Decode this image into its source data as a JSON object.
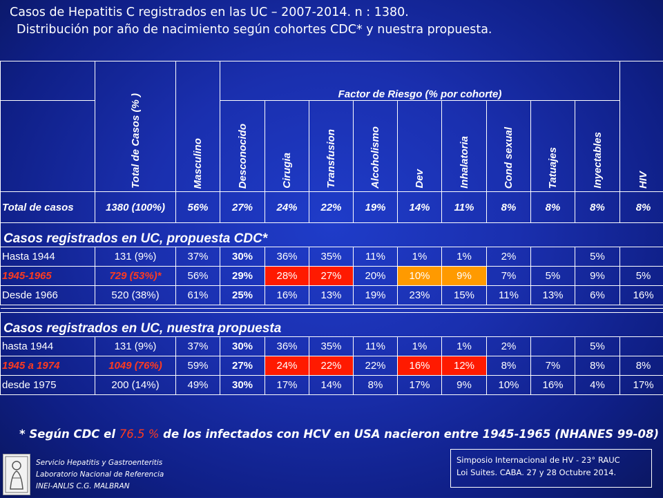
{
  "title": {
    "line1": "Casos de Hepatitis C registrados en las UC – 2007-2014. n : 1380.",
    "line2": "Distribución por año de nacimiento según cohortes CDC* y nuestra propuesta."
  },
  "table": {
    "headers": {
      "total": "Total de Casos (% )",
      "masculino": "Masculino",
      "factor_group": "Factor de Riesgo (% por cohorte)",
      "factors": [
        "Desconocido",
        "Cirugia",
        "Transfusion",
        "Alcoholismo",
        "Dev",
        "Inhalatoria",
        "Cond sexual",
        "Tatuajes",
        "Inyectables"
      ],
      "hiv": "HIV"
    },
    "total_row": [
      "Total de casos",
      "1380 (100%)",
      "56%",
      "27%",
      "24%",
      "22%",
      "19%",
      "14%",
      "11%",
      "8%",
      "8%",
      "8%",
      "8%"
    ],
    "section1_title": "Casos registrados en UC, propuesta CDC*",
    "section1_rows": [
      [
        "Hasta 1944",
        "131 (9%)",
        "37%",
        "30%",
        "36%",
        "35%",
        "11%",
        "1%",
        "1%",
        "2%",
        "",
        "5%",
        ""
      ],
      [
        "1945-1965",
        "729 (53%)*",
        "56%",
        "29%",
        "28%",
        "27%",
        "20%",
        "10%",
        "9%",
        "7%",
        "5%",
        "9%",
        "5%"
      ],
      [
        "Desde 1966",
        "520 (38%)",
        "61%",
        "25%",
        "16%",
        "13%",
        "19%",
        "23%",
        "15%",
        "11%",
        "13%",
        "6%",
        "16%"
      ]
    ],
    "section2_title": "Casos registrados en UC, nuestra propuesta",
    "section2_rows": [
      [
        "hasta 1944",
        "131 (9%)",
        "37%",
        "30%",
        "36%",
        "35%",
        "11%",
        "1%",
        "1%",
        "2%",
        "",
        "5%",
        ""
      ],
      [
        "1945  a 1974",
        "1049 (76%)",
        "59%",
        "27%",
        "24%",
        "22%",
        "22%",
        "16%",
        "12%",
        "8%",
        "7%",
        "8%",
        "8%"
      ],
      [
        "desde 1975",
        "200 (14%)",
        "49%",
        "30%",
        "17%",
        "14%",
        "8%",
        "17%",
        "9%",
        "10%",
        "16%",
        "4%",
        "17%"
      ]
    ]
  },
  "footnote": {
    "pre": "* Según  CDC  el ",
    "pct": "76.5 %",
    "post": " de los infectados con HCV en USA nacieron entre 1945-1965  (NHANES 99-08)"
  },
  "institution": [
    "Servicio Hepatitis y Gastroenteritis",
    "Laboratorio Nacional de Referencia",
    "INEI-ANLIS C.G. MALBRAN"
  ],
  "event": [
    "Simposio Internacional de HV - 23° RAUC",
    "Loi Suites. CABA.  27 y 28  Octubre 2014."
  ],
  "colors": {
    "red_cell": "#ff1a00",
    "orange_cell": "#ff9a00",
    "red_text": "#ff3b1f"
  }
}
